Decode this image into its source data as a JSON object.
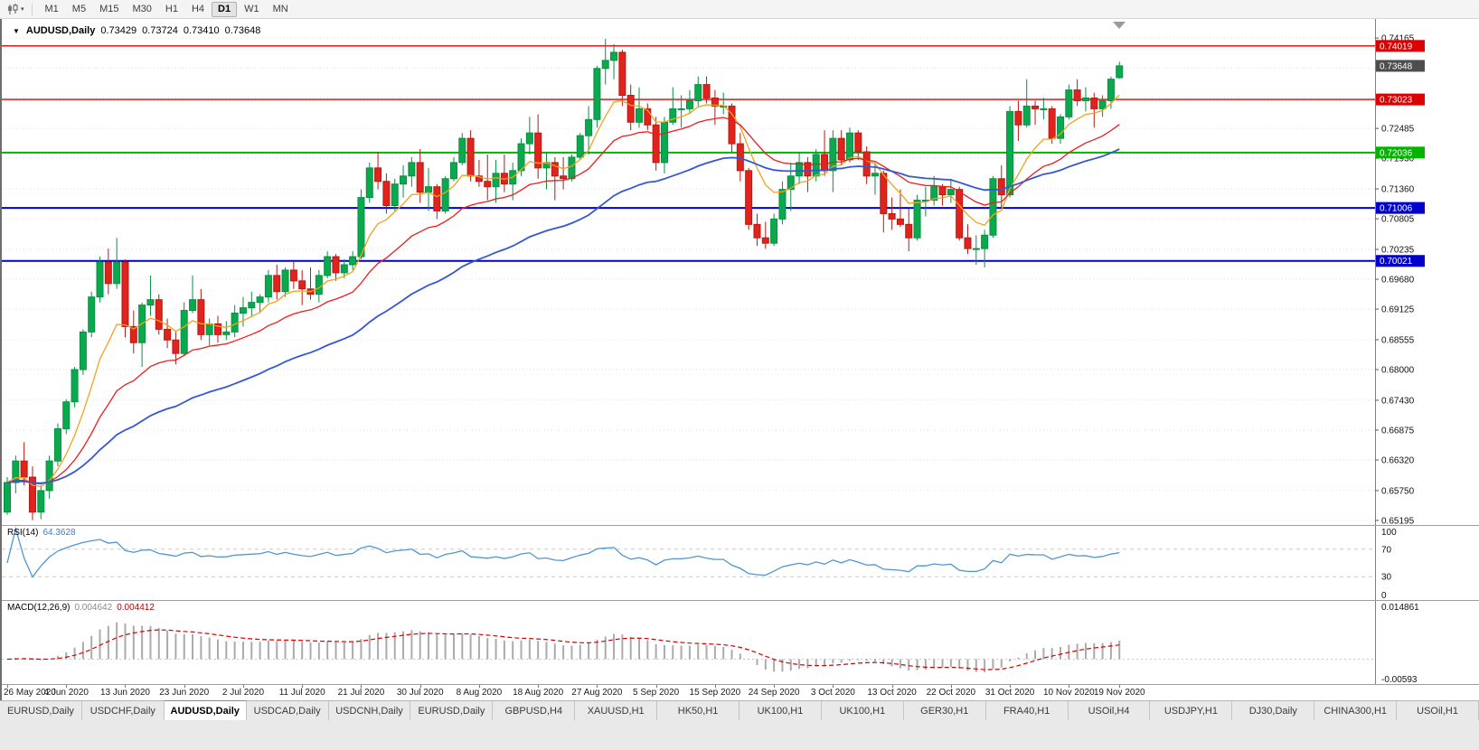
{
  "toolbar": {
    "chart_icon": "candlestick-chart-icon",
    "timeframes": [
      "M1",
      "M5",
      "M15",
      "M30",
      "H1",
      "H4",
      "D1",
      "W1",
      "MN"
    ],
    "active_timeframe": "D1"
  },
  "chart": {
    "title": {
      "symbol": "AUDUSD,Daily",
      "open": "0.73429",
      "high": "0.73724",
      "low": "0.73410",
      "close": "0.73648"
    },
    "price_axis": {
      "tick_labels": [
        "0.74165",
        "0.72485",
        "0.71930",
        "0.71360",
        "0.70805",
        "0.70235",
        "0.69680",
        "0.69125",
        "0.68555",
        "0.68000",
        "0.67430",
        "0.66875",
        "0.66320",
        "0.65750",
        "0.65195"
      ],
      "current_price": "0.73648",
      "level_badges": [
        {
          "label": "0.74019",
          "color": "#dd0000"
        },
        {
          "label": "0.73023",
          "color": "#dd0000"
        },
        {
          "label": "0.72036",
          "color": "#00b400"
        },
        {
          "label": "0.71006",
          "color": "#0000cc"
        },
        {
          "label": "0.70021",
          "color": "#0000cc"
        }
      ]
    }
  },
  "rsi_panel": {
    "name": "RSI(14)",
    "value": "64.3628",
    "axis_labels": [
      "100",
      "70",
      "30",
      "0"
    ],
    "levels": [
      70,
      30
    ]
  },
  "macd_panel": {
    "name": "MACD(12,26,9)",
    "value_main": "0.004642",
    "value_signal": "0.004412",
    "axis_top": "0.014861",
    "axis_bottom": "-0.00593"
  },
  "date_axis": [
    "26 May 2020",
    "4 Jun 2020",
    "13 Jun 2020",
    "23 Jun 2020",
    "2 Jul 2020",
    "11 Jul 2020",
    "21 Jul 2020",
    "30 Jul 2020",
    "8 Aug 2020",
    "18 Aug 2020",
    "27 Aug 2020",
    "5 Sep 2020",
    "15 Sep 2020",
    "24 Sep 2020",
    "3 Oct 2020",
    "13 Oct 2020",
    "22 Oct 2020",
    "31 Oct 2020",
    "10 Nov 2020",
    "19 Nov 2020"
  ],
  "tabs": {
    "active_index": 2,
    "items": [
      "EURUSD,Daily",
      "USDCHF,Daily",
      "AUDUSD,Daily",
      "USDCAD,Daily",
      "USDCNH,Daily",
      "EURUSD,Daily",
      "GBPUSD,H4",
      "XAUUSD,H1",
      "HK50,H1",
      "UK100,H1",
      "UK100,H1",
      "GER30,H1",
      "FRA40,H1",
      "USOil,H4",
      "USDJPY,H1",
      "DJ30,Daily",
      "CHINA300,H1",
      "USOil,H1"
    ]
  },
  "colors": {
    "bull": "#0ba94d",
    "bull_border": "#079043",
    "bear": "#e0231d",
    "bear_border": "#b81912",
    "ma_fast": "#f2a21c",
    "ma_mid": "#ee1c1c",
    "ma_slow": "#3457d5",
    "rsi_line": "#4f96d2",
    "macd_hist": "#ababab",
    "macd_signal": "#d40000",
    "grid": "#dcdcdc",
    "axis_text": "#111111",
    "current_badge_bg": "#4d4d4d"
  },
  "chart_data": {
    "type": "candlestick",
    "symbol": "AUDUSD",
    "timeframe": "Daily",
    "ohlc_last": {
      "open": 0.73429,
      "high": 0.73724,
      "low": 0.7341,
      "close": 0.73648
    },
    "ylim": [
      0.6511,
      0.7452
    ],
    "y_axis_ticks": [
      0.74165,
      0.7361,
      0.73055,
      0.72485,
      0.7193,
      0.7136,
      0.70805,
      0.70235,
      0.6968,
      0.69125,
      0.68555,
      0.68,
      0.6743,
      0.66875,
      0.6632,
      0.6575,
      0.65195
    ],
    "horizontal_levels": [
      {
        "price": 0.74019,
        "color": "#dd0000",
        "width": 1.4
      },
      {
        "price": 0.73023,
        "color": "#dd0000",
        "width": 1.4
      },
      {
        "price": 0.72036,
        "color": "#00b400",
        "width": 2
      },
      {
        "price": 0.71006,
        "color": "#0000cc",
        "width": 2
      },
      {
        "price": 0.70021,
        "color": "#0000cc",
        "width": 2
      }
    ],
    "moving_averages": [
      {
        "period": 8,
        "type": "ema",
        "color": "#f2a21c"
      },
      {
        "period": 20,
        "type": "ema",
        "color": "#ee1c1c"
      },
      {
        "period": 45,
        "type": "ema",
        "color": "#3457d5"
      }
    ],
    "rsi": {
      "period": 14,
      "last": 64.3628
    },
    "macd": {
      "fast": 12,
      "slow": 26,
      "signal": 9,
      "last_main": 0.004642,
      "last_signal": 0.004412,
      "scale_max": 0.014861,
      "scale_min": -0.00593
    },
    "date_labels_every": 7,
    "candles": [
      [
        0.6535,
        0.66,
        0.653,
        0.659
      ],
      [
        0.659,
        0.664,
        0.657,
        0.663
      ],
      [
        0.663,
        0.6665,
        0.6585,
        0.66
      ],
      [
        0.66,
        0.662,
        0.652,
        0.6535
      ],
      [
        0.6535,
        0.6585,
        0.6522,
        0.6575
      ],
      [
        0.6575,
        0.664,
        0.656,
        0.663
      ],
      [
        0.663,
        0.67,
        0.662,
        0.669
      ],
      [
        0.669,
        0.6745,
        0.668,
        0.674
      ],
      [
        0.674,
        0.6805,
        0.673,
        0.68
      ],
      [
        0.68,
        0.6875,
        0.679,
        0.687
      ],
      [
        0.687,
        0.6945,
        0.686,
        0.6935
      ],
      [
        0.6935,
        0.701,
        0.6925,
        0.7
      ],
      [
        0.7,
        0.7025,
        0.694,
        0.696
      ],
      [
        0.696,
        0.7045,
        0.695,
        0.7
      ],
      [
        0.7,
        0.7005,
        0.686,
        0.688
      ],
      [
        0.688,
        0.691,
        0.683,
        0.685
      ],
      [
        0.685,
        0.6925,
        0.6805,
        0.692
      ],
      [
        0.692,
        0.6975,
        0.69,
        0.693
      ],
      [
        0.693,
        0.694,
        0.6865,
        0.6875
      ],
      [
        0.6875,
        0.6895,
        0.684,
        0.6855
      ],
      [
        0.6855,
        0.687,
        0.681,
        0.683
      ],
      [
        0.683,
        0.6925,
        0.6825,
        0.691
      ],
      [
        0.691,
        0.6975,
        0.6905,
        0.693
      ],
      [
        0.693,
        0.695,
        0.6855,
        0.6865
      ],
      [
        0.6865,
        0.6895,
        0.6845,
        0.6885
      ],
      [
        0.6885,
        0.69,
        0.685,
        0.6865
      ],
      [
        0.6865,
        0.689,
        0.6855,
        0.687
      ],
      [
        0.687,
        0.692,
        0.686,
        0.6905
      ],
      [
        0.6905,
        0.6935,
        0.688,
        0.6915
      ],
      [
        0.6915,
        0.6945,
        0.69,
        0.6925
      ],
      [
        0.6925,
        0.694,
        0.6905,
        0.6935
      ],
      [
        0.6935,
        0.6985,
        0.6925,
        0.6975
      ],
      [
        0.6975,
        0.6995,
        0.693,
        0.6945
      ],
      [
        0.6945,
        0.699,
        0.6935,
        0.6985
      ],
      [
        0.6985,
        0.7,
        0.695,
        0.6965
      ],
      [
        0.6965,
        0.6985,
        0.692,
        0.695
      ],
      [
        0.695,
        0.699,
        0.693,
        0.694
      ],
      [
        0.694,
        0.6985,
        0.6925,
        0.6975
      ],
      [
        0.6975,
        0.702,
        0.697,
        0.701
      ],
      [
        0.701,
        0.7015,
        0.6965,
        0.698
      ],
      [
        0.698,
        0.7005,
        0.697,
        0.6995
      ],
      [
        0.6995,
        0.702,
        0.6985,
        0.701
      ],
      [
        0.701,
        0.7135,
        0.7005,
        0.712
      ],
      [
        0.712,
        0.7185,
        0.711,
        0.7175
      ],
      [
        0.7175,
        0.7205,
        0.7135,
        0.715
      ],
      [
        0.715,
        0.7165,
        0.709,
        0.7105
      ],
      [
        0.7105,
        0.7155,
        0.7095,
        0.7145
      ],
      [
        0.7145,
        0.718,
        0.712,
        0.716
      ],
      [
        0.716,
        0.7195,
        0.714,
        0.7185
      ],
      [
        0.7185,
        0.721,
        0.711,
        0.713
      ],
      [
        0.713,
        0.7175,
        0.7095,
        0.714
      ],
      [
        0.714,
        0.7145,
        0.708,
        0.7095
      ],
      [
        0.7095,
        0.716,
        0.709,
        0.7155
      ],
      [
        0.7155,
        0.7195,
        0.715,
        0.7185
      ],
      [
        0.7185,
        0.724,
        0.718,
        0.723
      ],
      [
        0.723,
        0.7245,
        0.715,
        0.716
      ],
      [
        0.716,
        0.719,
        0.714,
        0.715
      ],
      [
        0.715,
        0.72,
        0.7115,
        0.714
      ],
      [
        0.714,
        0.719,
        0.711,
        0.7165
      ],
      [
        0.7165,
        0.72,
        0.713,
        0.7145
      ],
      [
        0.7145,
        0.7185,
        0.7115,
        0.717
      ],
      [
        0.717,
        0.723,
        0.716,
        0.722
      ],
      [
        0.722,
        0.727,
        0.72,
        0.724
      ],
      [
        0.724,
        0.7275,
        0.7155,
        0.7175
      ],
      [
        0.7175,
        0.7205,
        0.7135,
        0.7185
      ],
      [
        0.7185,
        0.7195,
        0.7115,
        0.716
      ],
      [
        0.716,
        0.7195,
        0.7135,
        0.7155
      ],
      [
        0.7155,
        0.72,
        0.715,
        0.7195
      ],
      [
        0.7195,
        0.724,
        0.719,
        0.7235
      ],
      [
        0.7235,
        0.729,
        0.72,
        0.7265
      ],
      [
        0.7265,
        0.7365,
        0.725,
        0.736
      ],
      [
        0.736,
        0.7415,
        0.733,
        0.7375
      ],
      [
        0.7375,
        0.7405,
        0.734,
        0.739
      ],
      [
        0.739,
        0.7395,
        0.729,
        0.731
      ],
      [
        0.731,
        0.733,
        0.7245,
        0.726
      ],
      [
        0.726,
        0.7325,
        0.725,
        0.7285
      ],
      [
        0.7285,
        0.7295,
        0.7245,
        0.7255
      ],
      [
        0.7255,
        0.727,
        0.717,
        0.7185
      ],
      [
        0.7185,
        0.727,
        0.7165,
        0.726
      ],
      [
        0.726,
        0.7325,
        0.7255,
        0.7285
      ],
      [
        0.7285,
        0.731,
        0.725,
        0.7285
      ],
      [
        0.7285,
        0.732,
        0.7275,
        0.73
      ],
      [
        0.73,
        0.7345,
        0.729,
        0.733
      ],
      [
        0.733,
        0.7345,
        0.7295,
        0.7305
      ],
      [
        0.7305,
        0.732,
        0.7255,
        0.729
      ],
      [
        0.729,
        0.7315,
        0.7275,
        0.729
      ],
      [
        0.729,
        0.7295,
        0.7205,
        0.722
      ],
      [
        0.722,
        0.724,
        0.715,
        0.717
      ],
      [
        0.717,
        0.7175,
        0.706,
        0.707
      ],
      [
        0.707,
        0.709,
        0.703,
        0.7045
      ],
      [
        0.7045,
        0.7075,
        0.7025,
        0.7035
      ],
      [
        0.7035,
        0.709,
        0.703,
        0.708
      ],
      [
        0.708,
        0.715,
        0.707,
        0.7135
      ],
      [
        0.7135,
        0.7185,
        0.7095,
        0.716
      ],
      [
        0.716,
        0.7205,
        0.7145,
        0.7185
      ],
      [
        0.7185,
        0.7195,
        0.713,
        0.716
      ],
      [
        0.716,
        0.721,
        0.715,
        0.72
      ],
      [
        0.72,
        0.7245,
        0.716,
        0.717
      ],
      [
        0.717,
        0.7245,
        0.713,
        0.723
      ],
      [
        0.723,
        0.7245,
        0.718,
        0.719
      ],
      [
        0.719,
        0.725,
        0.7185,
        0.724
      ],
      [
        0.724,
        0.7245,
        0.719,
        0.7205
      ],
      [
        0.7205,
        0.7215,
        0.7145,
        0.716
      ],
      [
        0.716,
        0.7185,
        0.7125,
        0.7165
      ],
      [
        0.7165,
        0.717,
        0.7055,
        0.709
      ],
      [
        0.709,
        0.712,
        0.706,
        0.708
      ],
      [
        0.708,
        0.7135,
        0.7065,
        0.707
      ],
      [
        0.707,
        0.71,
        0.702,
        0.7045
      ],
      [
        0.7045,
        0.7125,
        0.704,
        0.7115
      ],
      [
        0.7115,
        0.714,
        0.7085,
        0.7115
      ],
      [
        0.7115,
        0.716,
        0.7105,
        0.714
      ],
      [
        0.714,
        0.7145,
        0.7105,
        0.7125
      ],
      [
        0.7125,
        0.7155,
        0.711,
        0.7135
      ],
      [
        0.7135,
        0.714,
        0.704,
        0.7045
      ],
      [
        0.7045,
        0.707,
        0.7015,
        0.7025
      ],
      [
        0.7025,
        0.705,
        0.6995,
        0.7025
      ],
      [
        0.7025,
        0.706,
        0.699,
        0.705
      ],
      [
        0.705,
        0.716,
        0.7045,
        0.7155
      ],
      [
        0.7155,
        0.718,
        0.71,
        0.7125
      ],
      [
        0.7125,
        0.729,
        0.712,
        0.728
      ],
      [
        0.728,
        0.73,
        0.7225,
        0.7255
      ],
      [
        0.7255,
        0.734,
        0.725,
        0.729
      ],
      [
        0.729,
        0.73,
        0.7255,
        0.7285
      ],
      [
        0.7285,
        0.7305,
        0.7265,
        0.7285
      ],
      [
        0.7285,
        0.729,
        0.722,
        0.723
      ],
      [
        0.723,
        0.7275,
        0.722,
        0.727
      ],
      [
        0.727,
        0.733,
        0.7265,
        0.732
      ],
      [
        0.732,
        0.734,
        0.729,
        0.73
      ],
      [
        0.73,
        0.7325,
        0.728,
        0.7305
      ],
      [
        0.7305,
        0.7315,
        0.725,
        0.7285
      ],
      [
        0.7285,
        0.731,
        0.727,
        0.73
      ],
      [
        0.73,
        0.7345,
        0.7285,
        0.734
      ],
      [
        0.73429,
        0.73724,
        0.7341,
        0.73648
      ]
    ]
  }
}
